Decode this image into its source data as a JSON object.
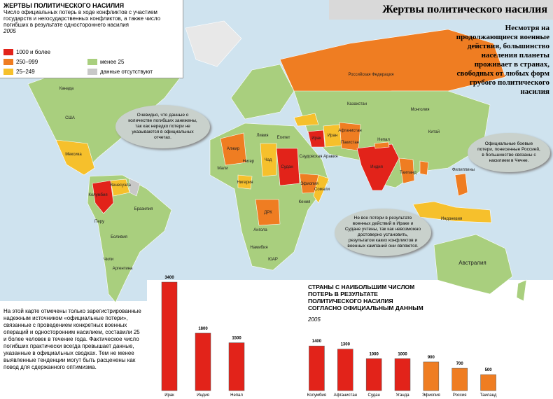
{
  "header": {
    "title": "Жертвы политического насилия",
    "box_title": "ЖЕРТВЫ ПОЛИТИЧЕСКОГО НАСИЛИЯ",
    "box_text": "Число официальных потерь в ходе конфликтов с участием государств и негосударственных конфликтов, а также число погибших в результате одностороннего насилия",
    "box_year": "2005"
  },
  "legend": [
    {
      "label": "1000 и более",
      "color": "#e2231a"
    },
    {
      "label": "250–999",
      "color": "#ef7d22"
    },
    {
      "label": "25–249",
      "color": "#f6c02c"
    },
    {
      "label": "менее 25",
      "color": "#a9cf7e"
    },
    {
      "label": "данные отсутствуют",
      "color": "#c8c8c8"
    }
  ],
  "side_text": "Несмотря на продолжающиеся военные действия, большинство населения планеты проживает в странах, свободных от любых форм грубого политического насилия",
  "callouts": [
    "Очевидно, что данные о количестве погибших занижены, так как нередко потери не указываются в официальных отчетах.",
    "Официальные боевые потери, понесенные Россией, в большинстве связаны с насилием в Чечне.",
    "Не все потери в результате военных действий в Ираке и Судане учтены, так как невозможно достоверно установить, результатом каких конфликтов и военных кампаний они являются."
  ],
  "note": "На этой карте отмечены только зарегистрированные надежным источником «официальные потери», связанные с проведением конкретных военных операций и односторонним насилием, составили 25 и более человек в течение года. Фактическое число погибших практически всегда превышает данные, указанные в официальных сводках. Тем не менее выявленные тенденции могут быть расценены как повод для сдержанного оптимизма.",
  "map": {
    "labels": [
      "Канада",
      "США",
      "Мексика",
      "Колумбия",
      "Венесуэла",
      "Перу",
      "Бразилия",
      "Боливия",
      "Чили",
      "Аргентина",
      "Российская Федерация",
      "Казахстан",
      "Монголия",
      "Китай",
      "Индия",
      "Непал",
      "Пакистан",
      "Афганистан",
      "Иран",
      "Ирак",
      "Саудовская Аравия",
      "Египет",
      "Ливия",
      "Алжир",
      "Мали",
      "Нигер",
      "Чад",
      "Нигерия",
      "Судан",
      "Эфиопия",
      "Сомали",
      "Кения",
      "ДРК",
      "Ангола",
      "Намибия",
      "ЮАР",
      "Таиланд",
      "Филиппины",
      "Индонезия",
      "Австралия"
    ]
  },
  "chart_data": [
    {
      "type": "bar",
      "categories": [
        "Ирак",
        "Индия",
        "Непал"
      ],
      "values": [
        3400,
        1800,
        1500
      ],
      "colors": [
        "#e2231a",
        "#e2231a",
        "#e2231a"
      ],
      "ylim": [
        0,
        3400
      ]
    },
    {
      "type": "bar",
      "title": "СТРАНЫ С НАИБОЛЬШИМ ЧИСЛОМ ПОТЕРЬ В РЕЗУЛЬТАТЕ ПОЛИТИЧЕСКОГО НАСИЛИЯ СОГЛАСНО ОФИЦИАЛЬНЫМ ДАННЫМ",
      "subtitle": "2005",
      "categories": [
        "Колумбия",
        "Афганистан",
        "Судан",
        "Уганда",
        "Эфиопия",
        "Россия",
        "Таиланд"
      ],
      "values": [
        1400,
        1300,
        1000,
        1000,
        900,
        700,
        500
      ],
      "colors": [
        "#e2231a",
        "#e2231a",
        "#e2231a",
        "#e2231a",
        "#ef7d22",
        "#ef7d22",
        "#ef7d22"
      ],
      "ylim": [
        0,
        3400
      ]
    }
  ]
}
